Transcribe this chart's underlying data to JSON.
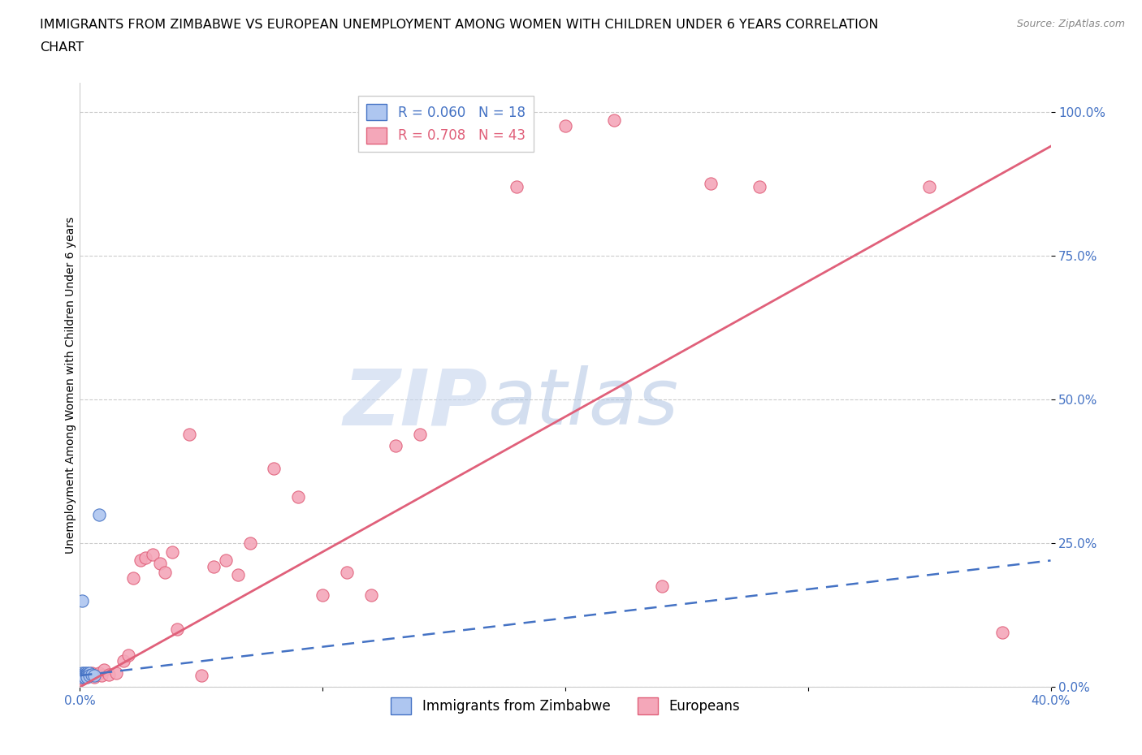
{
  "title_line1": "IMMIGRANTS FROM ZIMBABWE VS EUROPEAN UNEMPLOYMENT AMONG WOMEN WITH CHILDREN UNDER 6 YEARS CORRELATION",
  "title_line2": "CHART",
  "source": "Source: ZipAtlas.com",
  "ylabel": "Unemployment Among Women with Children Under 6 years",
  "xlim": [
    0.0,
    0.4
  ],
  "ylim": [
    0.0,
    1.05
  ],
  "yticks": [
    0.0,
    0.25,
    0.5,
    0.75,
    1.0
  ],
  "ytick_labels": [
    "0.0%",
    "25.0%",
    "50.0%",
    "75.0%",
    "100.0%"
  ],
  "xticks": [
    0.0,
    0.1,
    0.2,
    0.3,
    0.4
  ],
  "xtick_labels": [
    "0.0%",
    "",
    "",
    "",
    "40.0%"
  ],
  "legend_entries": [
    {
      "label": "R = 0.060   N = 18",
      "color": "#4472c4"
    },
    {
      "label": "R = 0.708   N = 43",
      "color": "#e0607a"
    }
  ],
  "zimbabwe_x": [
    0.001,
    0.001,
    0.001,
    0.001,
    0.002,
    0.002,
    0.002,
    0.002,
    0.003,
    0.003,
    0.003,
    0.003,
    0.004,
    0.004,
    0.005,
    0.006,
    0.008,
    0.001
  ],
  "zimbabwe_y": [
    0.025,
    0.022,
    0.02,
    0.018,
    0.025,
    0.022,
    0.02,
    0.018,
    0.025,
    0.022,
    0.02,
    0.018,
    0.025,
    0.02,
    0.022,
    0.02,
    0.3,
    0.15
  ],
  "europeans_x": [
    0.001,
    0.002,
    0.004,
    0.005,
    0.006,
    0.007,
    0.008,
    0.009,
    0.01,
    0.012,
    0.015,
    0.018,
    0.02,
    0.022,
    0.025,
    0.027,
    0.03,
    0.033,
    0.035,
    0.038,
    0.04,
    0.045,
    0.05,
    0.055,
    0.06,
    0.065,
    0.07,
    0.08,
    0.09,
    0.1,
    0.11,
    0.12,
    0.13,
    0.14,
    0.16,
    0.18,
    0.2,
    0.22,
    0.24,
    0.26,
    0.28,
    0.35,
    0.38
  ],
  "europeans_y": [
    0.015,
    0.018,
    0.02,
    0.025,
    0.018,
    0.022,
    0.025,
    0.02,
    0.03,
    0.022,
    0.025,
    0.045,
    0.055,
    0.19,
    0.22,
    0.225,
    0.23,
    0.215,
    0.2,
    0.235,
    0.1,
    0.44,
    0.02,
    0.21,
    0.22,
    0.195,
    0.25,
    0.38,
    0.33,
    0.16,
    0.2,
    0.16,
    0.42,
    0.44,
    0.98,
    0.87,
    0.975,
    0.985,
    0.175,
    0.875,
    0.87,
    0.87,
    0.095
  ],
  "zim_color": "#aec6f0",
  "zim_edge_color": "#4472c4",
  "euro_color": "#f4a7b9",
  "euro_edge_color": "#e0607a",
  "watermark_zip_color": "#c5d5ee",
  "watermark_atlas_color": "#a8bfe0",
  "background_color": "#ffffff",
  "grid_color": "#cccccc",
  "euro_reg_color": "#e0607a",
  "zim_reg_color": "#4472c4",
  "euro_reg_slope": 2.35,
  "euro_reg_intercept": 0.0,
  "zim_reg_slope": 0.5,
  "zim_reg_intercept": 0.02
}
